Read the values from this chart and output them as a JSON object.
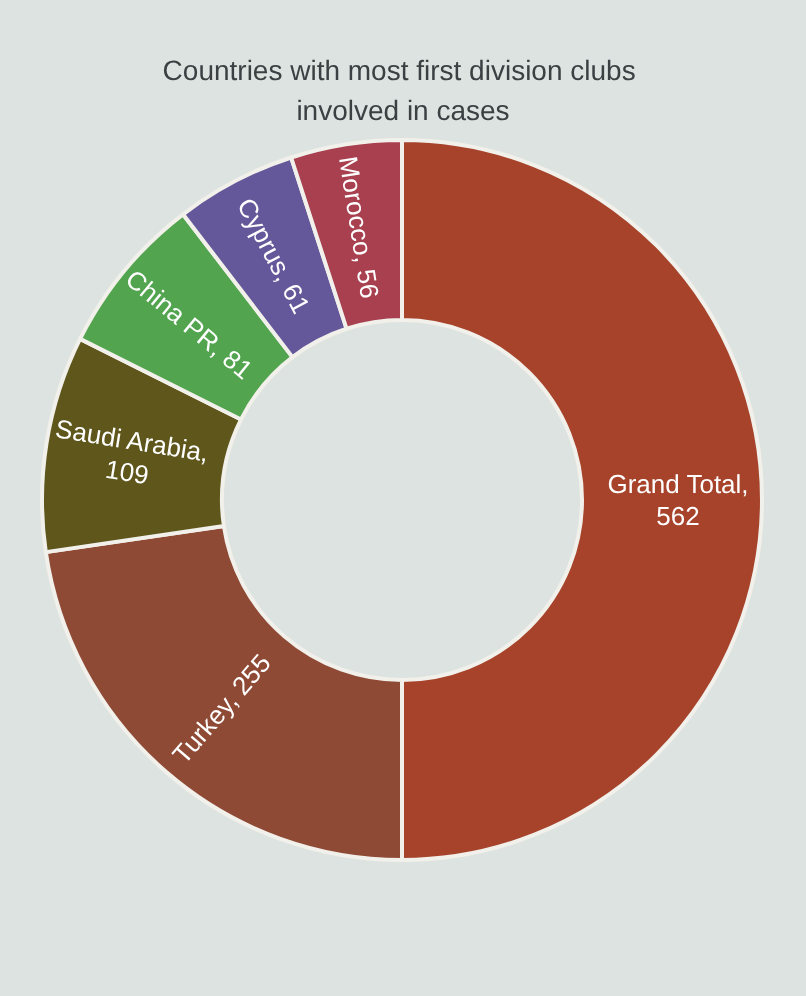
{
  "chart_data": {
    "type": "donut",
    "title": "Countries with most first division clubs involved in cases",
    "categories": [
      null,
      null,
      null,
      null,
      null,
      null
    ],
    "values": [
      562,
      255,
      109,
      81,
      61,
      56
    ],
    "colors": [
      "#a6432a",
      "#8f4a35",
      "#5f561c",
      "#52a44f",
      "#65589a",
      "#a8404f"
    ],
    "value_labels": [
      "Grand Total, 562",
      "Turkey, 255",
      "Saudi Arabia, 109",
      "China PR, 81",
      "Cyprus, 61",
      "Morocco, 56"
    ]
  }
}
